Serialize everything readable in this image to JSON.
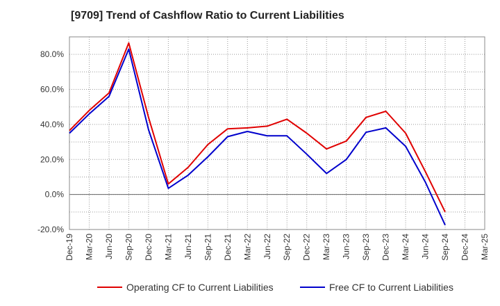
{
  "chart_data": {
    "type": "line",
    "title": "[9709]  Trend of Cashflow Ratio to Current Liabilities",
    "xlabel": "",
    "ylabel": "",
    "ylim": [
      -20,
      90
    ],
    "y_ticks": [
      "-20.0%",
      "0.0%",
      "20.0%",
      "40.0%",
      "60.0%",
      "80.0%"
    ],
    "y_tick_values": [
      -20,
      0,
      20,
      40,
      60,
      80
    ],
    "x_tick_labels": [
      "Dec-19",
      "Mar-20",
      "Jun-20",
      "Sep-20",
      "Dec-20",
      "Mar-21",
      "Jun-21",
      "Sep-21",
      "Dec-21",
      "Mar-22",
      "Jun-22",
      "Sep-22",
      "Dec-22",
      "Mar-23",
      "Jun-23",
      "Sep-23",
      "Dec-23",
      "Mar-24",
      "Jun-24",
      "Sep-24",
      "Dec-24",
      "Mar-25"
    ],
    "categories": [
      "Dec-19",
      "Mar-20",
      "Jun-20",
      "Sep-20",
      "Dec-20",
      "Mar-21",
      "Jun-21",
      "Sep-21",
      "Dec-21",
      "Mar-22",
      "Jun-22",
      "Sep-22",
      "Dec-22",
      "Mar-23",
      "Jun-23",
      "Sep-23",
      "Dec-23",
      "Mar-24",
      "Jun-24",
      "Sep-24"
    ],
    "series": [
      {
        "name": "Operating CF to Current Liabilities",
        "color": "#e00000",
        "values": [
          36.5,
          48.0,
          58.0,
          86.5,
          44.0,
          6.0,
          15.5,
          28.5,
          37.5,
          38.0,
          39.0,
          43.0,
          35.0,
          26.0,
          30.5,
          44.0,
          47.5,
          35.0,
          13.0,
          -10.0
        ]
      },
      {
        "name": "Free CF to Current Liabilities",
        "color": "#0000cc",
        "values": [
          35.0,
          46.0,
          56.0,
          83.0,
          37.0,
          3.5,
          11.0,
          21.5,
          33.0,
          36.0,
          33.5,
          33.5,
          23.0,
          12.0,
          20.0,
          35.5,
          38.0,
          27.5,
          7.0,
          -17.5
        ]
      }
    ],
    "grid": true,
    "legend_position": "bottom"
  }
}
